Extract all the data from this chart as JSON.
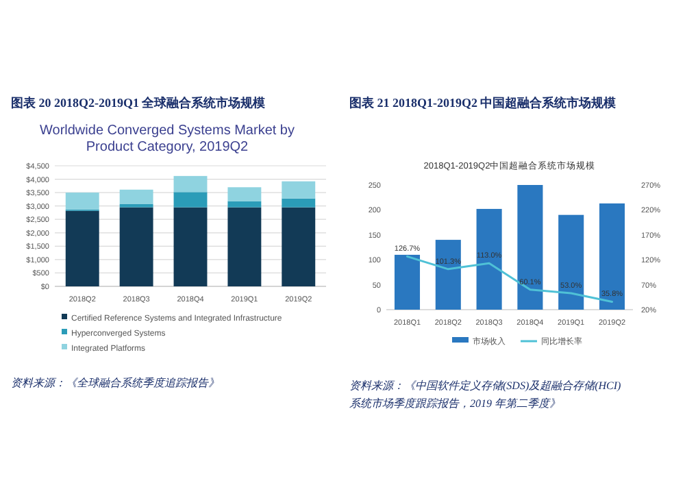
{
  "chart_data": [
    {
      "type": "bar",
      "title": "图表 20   2018Q2-2019Q1 全球融合系统市场规模",
      "subtitle": "Worldwide Converged Systems Market by Product Category, 2019Q2",
      "categories": [
        "2018Q2",
        "2018Q3",
        "2018Q4",
        "2019Q1",
        "2019Q2"
      ],
      "stacked": true,
      "series": [
        {
          "name": "Certified Reference Systems and Integrated Infrastructure",
          "color": "#123a56",
          "values": [
            2820,
            2950,
            2950,
            2950,
            2950
          ]
        },
        {
          "name": "Hyperconverged Systems",
          "color": "#2b9cb8",
          "values": [
            50,
            130,
            570,
            230,
            330
          ]
        },
        {
          "name": "Integrated Platforms",
          "color": "#8fd3e0",
          "values": [
            630,
            530,
            600,
            520,
            640
          ]
        }
      ],
      "ylim": [
        0,
        4500
      ],
      "yticks": [
        {
          "value": 0,
          "label": "$0"
        },
        {
          "value": 500,
          "label": "$500"
        },
        {
          "value": 1000,
          "label": "$1,000"
        },
        {
          "value": 1500,
          "label": "$1,500"
        },
        {
          "value": 2000,
          "label": "$2,000"
        },
        {
          "value": 2500,
          "label": "$2,500"
        },
        {
          "value": 3000,
          "label": "$3,000"
        },
        {
          "value": 3500,
          "label": "$3,500"
        },
        {
          "value": 4000,
          "label": "$4,000"
        },
        {
          "value": 4500,
          "label": "$4,500"
        }
      ],
      "grid": "y",
      "legend": "bottom",
      "annotations": [
        "资料来源：《全球融合系统季度追踪报告》"
      ]
    },
    {
      "type": "bar",
      "title": "图表 21   2018Q1-2019Q2 中国超融合系统市场规模",
      "subtitle": "2018Q1-2019Q2中国超融合系统市场规模",
      "categories": [
        "2018Q1",
        "2018Q2",
        "2018Q3",
        "2018Q4",
        "2019Q1",
        "2019Q2"
      ],
      "series": [
        {
          "name": "市场收入",
          "color": "#2a78c0",
          "values": [
            110,
            140,
            202,
            250,
            190,
            213
          ]
        },
        {
          "name": "同比增长率",
          "type": "line",
          "axis": "y2",
          "color": "#4fc1d6",
          "values": [
            126.7,
            101.3,
            113.0,
            60.1,
            53.0,
            35.8
          ],
          "value_labels": [
            "126.7%",
            "101.3%",
            "113.0%",
            "60.1%",
            "53.0%",
            "35.8%"
          ]
        }
      ],
      "ylim": [
        0,
        250
      ],
      "yticks": [
        0,
        50,
        100,
        150,
        200,
        250
      ],
      "y2lim": [
        20,
        270
      ],
      "y2ticks": [
        {
          "value": 20,
          "label": "20%"
        },
        {
          "value": 70,
          "label": "70%"
        },
        {
          "value": 120,
          "label": "120%"
        },
        {
          "value": 170,
          "label": "170%"
        },
        {
          "value": 220,
          "label": "220%"
        },
        {
          "value": 270,
          "label": "270%"
        }
      ],
      "legend": "bottom",
      "annotations": [
        "资料来源：《中国软件定义存储(SDS)及超融合存储(HCI)系统市场季度跟踪报告，2019 年第二季度》"
      ]
    }
  ]
}
